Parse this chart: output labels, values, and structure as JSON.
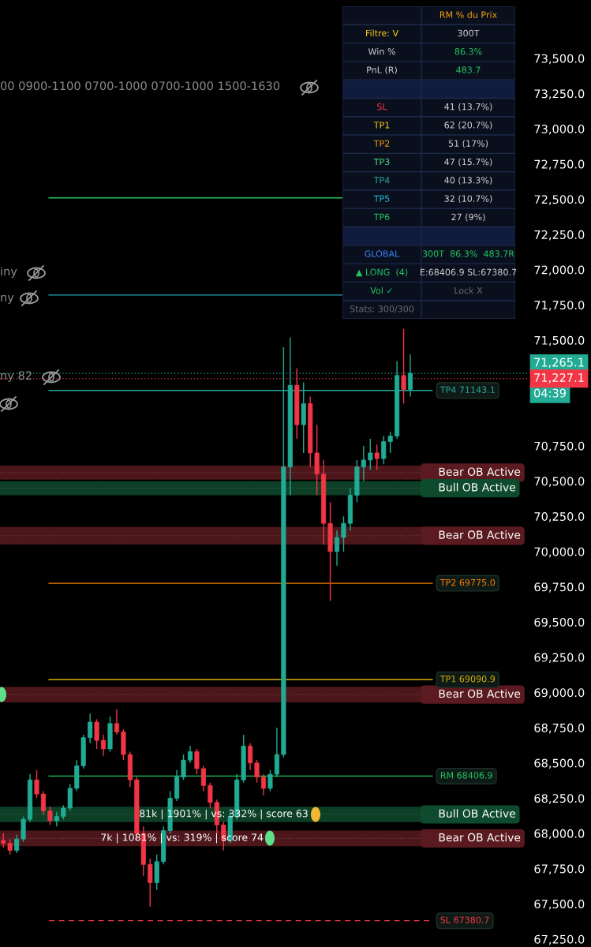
{
  "chart_data": {
    "type": "candlestick",
    "categories": [
      null,
      null,
      null,
      null,
      null,
      null,
      null,
      null,
      null,
      null,
      null,
      null,
      null,
      null,
      null,
      null,
      null,
      null,
      null,
      null,
      null,
      null,
      null,
      null,
      null,
      null,
      null,
      null,
      null,
      null,
      null,
      null,
      null,
      null,
      null,
      null,
      null,
      null,
      null,
      null,
      null,
      null,
      null,
      null,
      null,
      null,
      null,
      null,
      null,
      null,
      null,
      null,
      null,
      null,
      null,
      null,
      null,
      null,
      null,
      null,
      null,
      null,
      null,
      null,
      null,
      null,
      null,
      null,
      null,
      null,
      null,
      null,
      null,
      null,
      null,
      null,
      null,
      null,
      null
    ],
    "ohlc": [
      [
        67950,
        68000,
        67900,
        67930
      ],
      [
        67930,
        67960,
        67850,
        67880
      ],
      [
        67880,
        67990,
        67860,
        67960
      ],
      [
        67960,
        68120,
        67940,
        68100
      ],
      [
        68100,
        68420,
        68080,
        68380
      ],
      [
        68380,
        68450,
        68250,
        68280
      ],
      [
        68280,
        68300,
        68130,
        68160
      ],
      [
        68160,
        68190,
        68060,
        68090
      ],
      [
        68090,
        68150,
        68050,
        68120
      ],
      [
        68120,
        68200,
        68100,
        68180
      ],
      [
        68180,
        68350,
        68160,
        68320
      ],
      [
        68320,
        68520,
        68300,
        68480
      ],
      [
        68480,
        68700,
        68460,
        68680
      ],
      [
        68680,
        68850,
        68640,
        68790
      ],
      [
        68790,
        68810,
        68600,
        68660
      ],
      [
        68660,
        68700,
        68550,
        68600
      ],
      [
        68600,
        68830,
        68580,
        68780
      ],
      [
        68780,
        68880,
        68700,
        68720
      ],
      [
        68720,
        68740,
        68520,
        68560
      ],
      [
        68560,
        68580,
        68330,
        68380
      ],
      [
        68380,
        68400,
        67950,
        68000
      ],
      [
        68000,
        68050,
        67700,
        67780
      ],
      [
        67780,
        67820,
        67480,
        67650
      ],
      [
        67650,
        67850,
        67600,
        67800
      ],
      [
        67800,
        68050,
        67780,
        68020
      ],
      [
        68020,
        68300,
        68000,
        68250
      ],
      [
        68250,
        68450,
        68230,
        68400
      ],
      [
        68400,
        68560,
        68380,
        68520
      ],
      [
        68520,
        68620,
        68500,
        68580
      ],
      [
        68580,
        68600,
        68420,
        68460
      ],
      [
        68460,
        68480,
        68300,
        68340
      ],
      [
        68340,
        68360,
        68180,
        68220
      ],
      [
        68220,
        68240,
        68000,
        68060
      ],
      [
        68060,
        68080,
        67880,
        67950
      ],
      [
        67950,
        68150,
        67930,
        68120
      ],
      [
        68120,
        68420,
        68100,
        68380
      ],
      [
        68380,
        68700,
        68360,
        68620
      ],
      [
        68620,
        68640,
        68450,
        68500
      ],
      [
        68500,
        68520,
        68360,
        68400
      ],
      [
        68400,
        68420,
        68270,
        68320
      ],
      [
        68320,
        68450,
        68300,
        68420
      ],
      [
        68420,
        68750,
        68400,
        68560
      ],
      [
        68560,
        71450,
        68540,
        70600
      ],
      [
        70600,
        71520,
        70400,
        71180
      ],
      [
        71180,
        71300,
        70800,
        70900
      ],
      [
        70900,
        71200,
        70700,
        71050
      ],
      [
        71050,
        71100,
        70600,
        70700
      ],
      [
        70700,
        70900,
        70400,
        70550
      ],
      [
        70550,
        70650,
        70050,
        70200
      ],
      [
        70200,
        70350,
        69650,
        70000
      ],
      [
        70000,
        70150,
        69900,
        70100
      ],
      [
        70100,
        70250,
        70000,
        70200
      ],
      [
        70200,
        70450,
        70150,
        70400
      ],
      [
        70400,
        70650,
        70350,
        70600
      ],
      [
        70600,
        70750,
        70500,
        70650
      ],
      [
        70650,
        70800,
        70580,
        70700
      ],
      [
        70700,
        70760,
        70580,
        70660
      ],
      [
        70660,
        70820,
        70620,
        70780
      ],
      [
        70780,
        70850,
        70700,
        70820
      ],
      [
        70820,
        71350,
        70800,
        71250
      ],
      [
        71250,
        71580,
        71050,
        71150
      ],
      [
        71150,
        71400,
        71100,
        71265.1
      ],
      null,
      null,
      null,
      null,
      null,
      null,
      null,
      null,
      null,
      null,
      null,
      null,
      null,
      null,
      null,
      null,
      null
    ],
    "colors": [
      "#f23645",
      "#f23645",
      "#22ab94",
      "#22ab94",
      "#22ab94",
      "#f23645",
      "#f23645",
      "#f23645",
      "#22ab94",
      "#22ab94",
      "#22ab94",
      "#22ab94",
      "#22ab94",
      "#22ab94",
      "#f23645",
      "#f23645",
      "#22ab94",
      "#f23645",
      "#f23645",
      "#f23645",
      "#f23645",
      "#f23645",
      "#f23645",
      "#22ab94",
      "#22ab94",
      "#22ab94",
      "#22ab94",
      "#22ab94",
      "#22ab94",
      "#f23645",
      "#f23645",
      "#f23645",
      "#f23645",
      "#f23645",
      "#22ab94",
      "#22ab94",
      "#22ab94",
      "#f23645",
      "#f23645",
      "#f23645",
      "#22ab94",
      "#22ab94",
      "#22ab94",
      "#22ab94",
      "#f23645",
      "#22ab94",
      "#f23645",
      "#f23645",
      "#f23645",
      "#f23645",
      "#22ab94",
      "#22ab94",
      "#22ab94",
      "#22ab94",
      "#22ab94",
      "#22ab94",
      "#f23645",
      "#22ab94",
      "#22ab94",
      "#22ab94",
      "#f23645",
      "#22ab94",
      null,
      null,
      null,
      null,
      null,
      null,
      null,
      null,
      null,
      null,
      null,
      null,
      null,
      null,
      null,
      null,
      null
    ],
    "ylim": [
      67194,
      73914
    ],
    "yticks": [
      {
        "value": 67250,
        "label": "67,250.0"
      },
      {
        "value": 67500,
        "label": "67,500.0"
      },
      {
        "value": 67750,
        "label": "67,750.0"
      },
      {
        "value": 68000,
        "label": "68,000.0"
      },
      {
        "value": 68250,
        "label": "68,250.0"
      },
      {
        "value": 68500,
        "label": "68,500.0"
      },
      {
        "value": 68750,
        "label": "68,750.0"
      },
      {
        "value": 69000,
        "label": "69,000.0"
      },
      {
        "value": 69250,
        "label": "69,250.0"
      },
      {
        "value": 69500,
        "label": "69,500.0"
      },
      {
        "value": 69750,
        "label": "69,750.0"
      },
      {
        "value": 70000,
        "label": "70,000.0"
      },
      {
        "value": 70250,
        "label": "70,250.0"
      },
      {
        "value": 70500,
        "label": "70,500.0"
      },
      {
        "value": 70750,
        "label": "70,750.0"
      },
      {
        "value": 71500,
        "label": "71,500.0"
      },
      {
        "value": 71750,
        "label": "71,750.0"
      },
      {
        "value": 72000,
        "label": "72,000.0"
      },
      {
        "value": 72250,
        "label": "72,250.0"
      },
      {
        "value": 72500,
        "label": "72,500.0"
      },
      {
        "value": 72750,
        "label": "72,750.0"
      },
      {
        "value": 73000,
        "label": "73,000.0"
      },
      {
        "value": 73250,
        "label": "73,250.0"
      },
      {
        "value": 73500,
        "label": "73,500.0"
      }
    ],
    "tick_labels": "y",
    "ref_lines": [
      {
        "axis": "y",
        "value": 72510,
        "label": null,
        "color": "#22c55e",
        "line_style": "solid"
      },
      {
        "axis": "y",
        "value": 71820,
        "label": null,
        "color": "#26a6b8",
        "line_style": "solid"
      },
      {
        "axis": "y",
        "value": 71265.1,
        "label": "71,265.1",
        "color": "#22ab94",
        "line_style": "dotted"
      },
      {
        "axis": "y",
        "value": 71227.1,
        "label": "71,227.1",
        "color": "#f23645",
        "line_style": "dotted"
      },
      {
        "axis": "y",
        "value": 71143.1,
        "label": "TP4 71143.1",
        "color": "#26a69a",
        "line_style": "solid"
      },
      {
        "axis": "y",
        "value": 69775.0,
        "label": "TP2 69775.0",
        "color": "#f57c00",
        "line_style": "solid"
      },
      {
        "axis": "y",
        "value": 69090.9,
        "label": "TP1 69090.9",
        "color": "#d4b106",
        "line_style": "solid"
      },
      {
        "axis": "y",
        "value": 68406.9,
        "label": "RM 68406.9",
        "color": "#22c55e",
        "line_style": "solid"
      },
      {
        "axis": "y",
        "value": 67380.7,
        "label": "SL 67380.7",
        "color": "#f23645",
        "line_style": "dashed"
      }
    ],
    "bands": [
      {
        "axis": "y",
        "from": 70510,
        "to": 70610,
        "label": "Bear OB Active",
        "color": "#5a1a20"
      },
      {
        "axis": "y",
        "from": 70400,
        "to": 70500,
        "label": "Bull OB Active",
        "color": "#0e4a2c"
      },
      {
        "axis": "y",
        "from": 70050,
        "to": 70175,
        "label": "Bear OB Active",
        "color": "#5a1a20"
      },
      {
        "axis": "y",
        "from": 68930,
        "to": 69040,
        "label": "Bear OB Active",
        "color": "#5a1a20"
      },
      {
        "axis": "y",
        "from": 68080,
        "to": 68190,
        "label": "Bull OB Active",
        "color": "#0e4a2c"
      },
      {
        "axis": "y",
        "from": 67910,
        "to": 68020,
        "label": "Bear OB Active",
        "color": "#5a1a20"
      }
    ],
    "annotations": [
      "00 0900-1100 0700-1000 0700-1000 1500-1630",
      "iny",
      "ny",
      "ny 82",
      "81k | 1901% | vs: 332% | score 63",
      "7k | 1081% | vs: 319% | score 74",
      "04:39",
      "RM % du Prix",
      "Filtre: V",
      "300T",
      "Win %",
      "86.3%",
      "PnL (R)",
      "483.7",
      "SL",
      "41 (13.7%)",
      "TP1",
      "62 (20.7%)",
      "TP2",
      "51 (17%)",
      "TP3",
      "47 (15.7%)",
      "TP4",
      "40 (13.3%)",
      "TP5",
      "32 (10.7%)",
      "TP6",
      "27 (9%)",
      "GLOBAL",
      "300T  86.3%  483.7R",
      "▲ LONG  (4)",
      "E:68406.9 SL:67380.7",
      "Vol ✓",
      "Lock X",
      "Stats: 300/300"
    ]
  }
}
